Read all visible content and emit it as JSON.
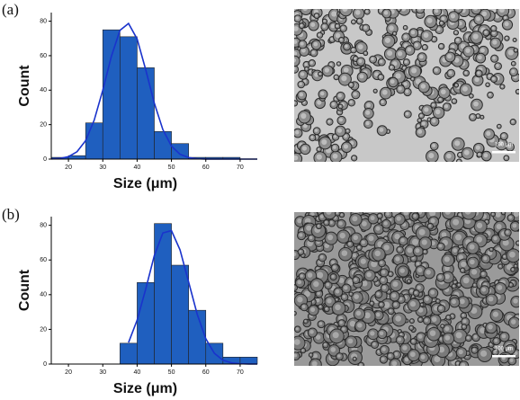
{
  "chart_data": [
    {
      "type": "histogram",
      "label": "(a)",
      "xlabel": "Size (μm)",
      "ylabel": "Count",
      "color": "#1f5fbf",
      "bins": [
        15,
        20,
        25,
        30,
        35,
        40,
        45,
        50,
        55,
        60,
        65,
        70,
        75
      ],
      "values": [
        1,
        2,
        21,
        75,
        71,
        53,
        16,
        9,
        1,
        1,
        1,
        0
      ],
      "fit": {
        "color": "#1a33cc",
        "x": [
          15,
          17.5,
          20,
          22.5,
          25,
          27.5,
          30,
          32.5,
          35,
          37.5,
          40,
          42.5,
          45,
          47.5,
          50,
          52.5,
          55,
          57.5,
          60,
          62.5,
          65,
          67.5,
          70,
          72.5,
          75
        ],
        "y": [
          0.1,
          0.4,
          1.4,
          4.3,
          10.7,
          22.6,
          40.0,
          59.6,
          74.7,
          78.7,
          69.7,
          51.9,
          32.5,
          17.1,
          7.5,
          2.8,
          0.9,
          0.2,
          0.05,
          0,
          0,
          0,
          0,
          0,
          0
        ]
      },
      "xlim": [
        15,
        75
      ],
      "xticks": [
        20,
        30,
        40,
        50,
        60,
        70
      ],
      "ylim": [
        0,
        85
      ],
      "yticks": [
        0,
        20,
        40,
        60,
        80
      ]
    },
    {
      "type": "histogram",
      "label": "(b)",
      "xlabel": "Size (μm)",
      "ylabel": "Count",
      "color": "#1f5fbf",
      "bins": [
        15,
        20,
        25,
        30,
        35,
        40,
        45,
        50,
        55,
        60,
        65,
        70,
        75
      ],
      "values": [
        0,
        0,
        0,
        0,
        12,
        47,
        81,
        57,
        31,
        12,
        4,
        4
      ],
      "fit": {
        "color": "#1a33cc",
        "x": [
          37.5,
          40,
          42.5,
          45,
          47.5,
          50,
          52.5,
          55,
          57.5,
          60,
          62.5,
          65,
          67.5,
          70,
          72.5,
          75
        ],
        "y": [
          12.4,
          25.3,
          43.2,
          62.5,
          75.6,
          76.9,
          65.8,
          47.3,
          28.7,
          14.6,
          6.2,
          2.2,
          0.7,
          0.2,
          0.05,
          0
        ]
      },
      "xlim": [
        15,
        75
      ],
      "xticks": [
        20,
        30,
        40,
        50,
        60,
        70
      ],
      "ylim": [
        0,
        85
      ],
      "yticks": [
        0,
        20,
        40,
        60,
        80
      ]
    }
  ],
  "images": [
    {
      "scale_bar": "100 μm"
    },
    {
      "scale_bar": "100 μm"
    }
  ]
}
